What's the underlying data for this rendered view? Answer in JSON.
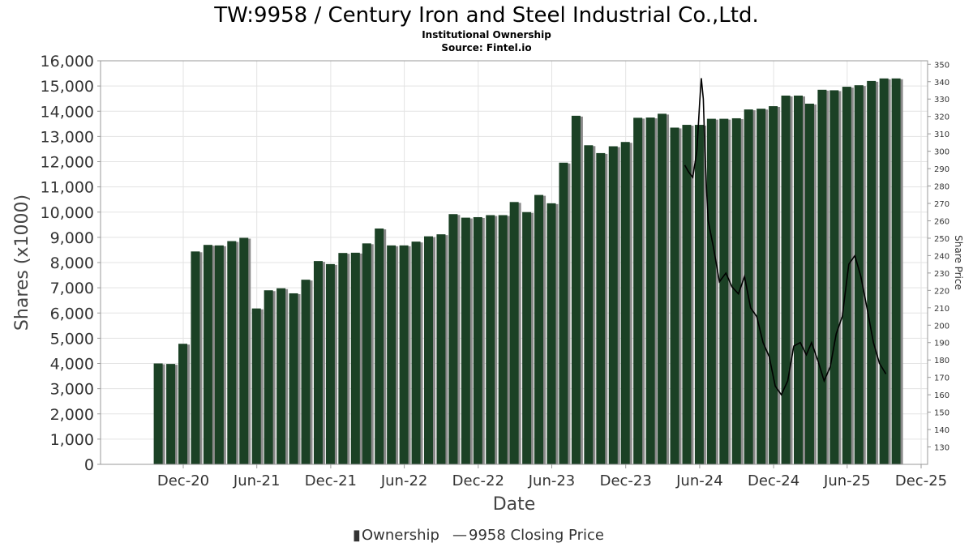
{
  "colors": {
    "bar": "#1b4125",
    "bar_shadow": "#8a8a8a",
    "line": "#000000",
    "grid": "#e3e3e3"
  },
  "chart_data": {
    "type": "bar",
    "title": "TW:9958 / Century Iron and Steel Industrial Co.,Ltd.",
    "subtitle": "Institutional Ownership",
    "source": "Source: Fintel.io",
    "xlabel": "Date",
    "ylabel": "Shares (x1000)",
    "y2label": "Share Price",
    "ylim": [
      0,
      16000
    ],
    "y2lim": [
      120,
      352
    ],
    "yticks": [
      "0",
      "1,000",
      "2,000",
      "3,000",
      "4,000",
      "5,000",
      "6,000",
      "7,000",
      "8,000",
      "9,000",
      "10,000",
      "11,000",
      "12,000",
      "13,000",
      "14,000",
      "15,000",
      "16,000"
    ],
    "y2ticks": [
      "130",
      "140",
      "150",
      "160",
      "170",
      "180",
      "190",
      "200",
      "210",
      "220",
      "230",
      "240",
      "250",
      "260",
      "270",
      "280",
      "290",
      "300",
      "310",
      "320",
      "330",
      "340",
      "350"
    ],
    "xticks": [
      "Dec-20",
      "Jun-21",
      "Dec-21",
      "Jun-22",
      "Dec-22",
      "Jun-23",
      "Dec-23",
      "Jun-24",
      "Dec-24",
      "Jun-25",
      "Dec-25"
    ],
    "legend_position": "bottom",
    "series": [
      {
        "name": "Ownership",
        "type": "bar",
        "x": [
          "2020-09-30",
          "2020-10-31",
          "2020-11-30",
          "2020-12-31",
          "2021-01-31",
          "2021-02-28",
          "2021-03-31",
          "2021-04-30",
          "2021-05-31",
          "2021-06-30",
          "2021-07-31",
          "2021-08-31",
          "2021-09-30",
          "2021-10-31",
          "2021-11-30",
          "2021-12-31",
          "2022-01-31",
          "2022-02-28",
          "2022-03-31",
          "2022-04-30",
          "2022-05-31",
          "2022-06-30",
          "2022-07-31",
          "2022-08-31",
          "2022-09-30",
          "2022-10-31",
          "2022-11-30",
          "2022-12-31",
          "2023-01-31",
          "2023-02-28",
          "2023-03-31",
          "2023-04-30",
          "2023-05-31",
          "2023-06-30",
          "2023-07-31",
          "2023-08-31",
          "2023-09-30",
          "2023-10-31",
          "2023-11-30",
          "2023-12-31",
          "2024-01-31",
          "2024-02-29",
          "2024-03-31",
          "2024-04-30",
          "2024-05-31",
          "2024-06-30",
          "2024-07-31",
          "2024-08-31",
          "2024-09-30",
          "2024-10-31",
          "2024-11-30",
          "2024-12-31",
          "2025-01-31",
          "2025-02-28",
          "2025-03-31",
          "2025-04-30",
          "2025-05-31",
          "2025-06-30",
          "2025-07-31",
          "2025-08-31",
          "2025-09-30"
        ],
        "values": [
          4000,
          3980,
          4780,
          8440,
          8700,
          8680,
          8850,
          8980,
          6180,
          6900,
          6980,
          6780,
          7320,
          8060,
          7940,
          8380,
          8390,
          8760,
          9350,
          8680,
          8680,
          8830,
          9040,
          9120,
          9920,
          9780,
          9800,
          9880,
          9880,
          10400,
          10000,
          10680,
          10350,
          11960,
          13820,
          12650,
          12340,
          12610,
          12780,
          13740,
          13750,
          13900,
          13350,
          13460,
          13460,
          13700,
          13700,
          13720,
          14070,
          14100,
          14200,
          14620,
          14620,
          14300,
          14850,
          14830,
          14970,
          15030,
          15200,
          15300,
          15300
        ]
      },
      {
        "name": "9958 Closing Price",
        "type": "line",
        "x": [
          "2024-04-25",
          "2024-05-05",
          "2024-05-15",
          "2024-05-25",
          "2024-06-01",
          "2024-06-05",
          "2024-06-10",
          "2024-06-14",
          "2024-06-18",
          "2024-06-22",
          "2024-07-05",
          "2024-07-20",
          "2024-08-05",
          "2024-08-20",
          "2024-09-05",
          "2024-09-20",
          "2024-10-05",
          "2024-10-20",
          "2024-11-05",
          "2024-11-20",
          "2024-12-05",
          "2024-12-20",
          "2025-01-05",
          "2025-01-20",
          "2025-02-05",
          "2025-02-20",
          "2025-03-05",
          "2025-03-20",
          "2025-04-05",
          "2025-04-20",
          "2025-05-05",
          "2025-05-20",
          "2025-06-05",
          "2025-06-20",
          "2025-07-05",
          "2025-07-20",
          "2025-08-05",
          "2025-08-20",
          "2025-09-05"
        ],
        "values": [
          292,
          288,
          285,
          300,
          328,
          342,
          330,
          300,
          278,
          260,
          245,
          225,
          230,
          222,
          218,
          228,
          210,
          205,
          190,
          182,
          165,
          160,
          168,
          188,
          190,
          183,
          190,
          180,
          168,
          176,
          195,
          205,
          235,
          240,
          228,
          210,
          190,
          178,
          172
        ]
      }
    ]
  },
  "legend": {
    "ownership_label": "Ownership",
    "price_label": "9958 Closing Price",
    "ownership_marker": "▮",
    "price_marker": "—"
  }
}
